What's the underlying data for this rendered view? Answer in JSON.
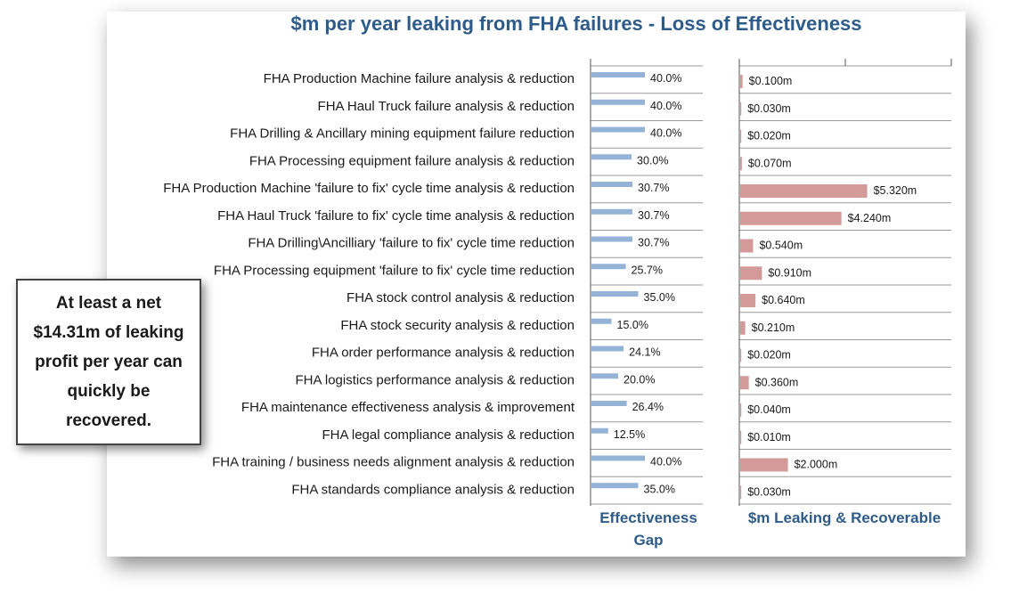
{
  "title": "$m per year leaking from  FHA failures  - Loss of Effectiveness",
  "callout": "At least a net $14.31m of leaking profit per year can quickly be recovered.",
  "colors": {
    "title": "#2e5c8a",
    "gap_bar": "#94b3d7",
    "leak_bar": "#d49999",
    "grid": "#9a9a9a"
  },
  "chart_data": [
    {
      "type": "bar",
      "orientation": "horizontal",
      "xlabel": "Effectiveness Gap",
      "xlim": [
        0,
        1
      ],
      "categories": [
        "FHA Production Machine failure analysis & reduction",
        "FHA Haul Truck failure analysis & reduction",
        "FHA Drilling & Ancillary mining equipment failure reduction",
        "FHA Processing equipment failure analysis & reduction",
        "FHA Production Machine 'failure to fix' cycle time analysis & reduction",
        "FHA Haul Truck 'failure to fix' cycle time analysis & reduction",
        "FHA Drilling\\Ancilliary 'failure to fix' cycle time reduction",
        "FHA Processing equipment 'failure to fix' cycle time reduction",
        "FHA stock control analysis & reduction",
        "FHA stock security analysis & reduction",
        "FHA order performance analysis & reduction",
        "FHA logistics performance analysis & reduction",
        "FHA maintenance effectiveness analysis & improvement",
        "FHA legal compliance analysis & reduction",
        "FHA training / business needs alignment analysis & reduction",
        "FHA standards compliance analysis & reduction"
      ],
      "values": [
        0.4,
        0.4,
        0.4,
        0.3,
        0.307,
        0.307,
        0.307,
        0.257,
        0.35,
        0.15,
        0.241,
        0.2,
        0.264,
        0.125,
        0.4,
        0.35
      ],
      "labels": [
        "40.0%",
        "40.0%",
        "40.0%",
        "30.0%",
        "30.7%",
        "30.7%",
        "30.7%",
        "25.7%",
        "35.0%",
        "15.0%",
        "24.1%",
        "20.0%",
        "26.4%",
        "12.5%",
        "40.0%",
        "35.0%"
      ]
    },
    {
      "type": "bar",
      "orientation": "horizontal",
      "xlabel": "$m Leaking & Recoverable",
      "xlim": [
        0,
        9
      ],
      "values": [
        0.1,
        0.03,
        0.02,
        0.07,
        5.32,
        4.24,
        0.54,
        0.91,
        0.64,
        0.21,
        0.02,
        0.36,
        0.04,
        0.01,
        2.0,
        0.03
      ],
      "labels": [
        "$0.100m",
        "$0.030m",
        "$0.020m",
        "$0.070m",
        "$5.320m",
        "$4.240m",
        "$0.540m",
        "$0.910m",
        "$0.640m",
        "$0.210m",
        "$0.020m",
        "$0.360m",
        "$0.040m",
        "$0.010m",
        "$2.000m",
        "$0.030m"
      ]
    }
  ]
}
